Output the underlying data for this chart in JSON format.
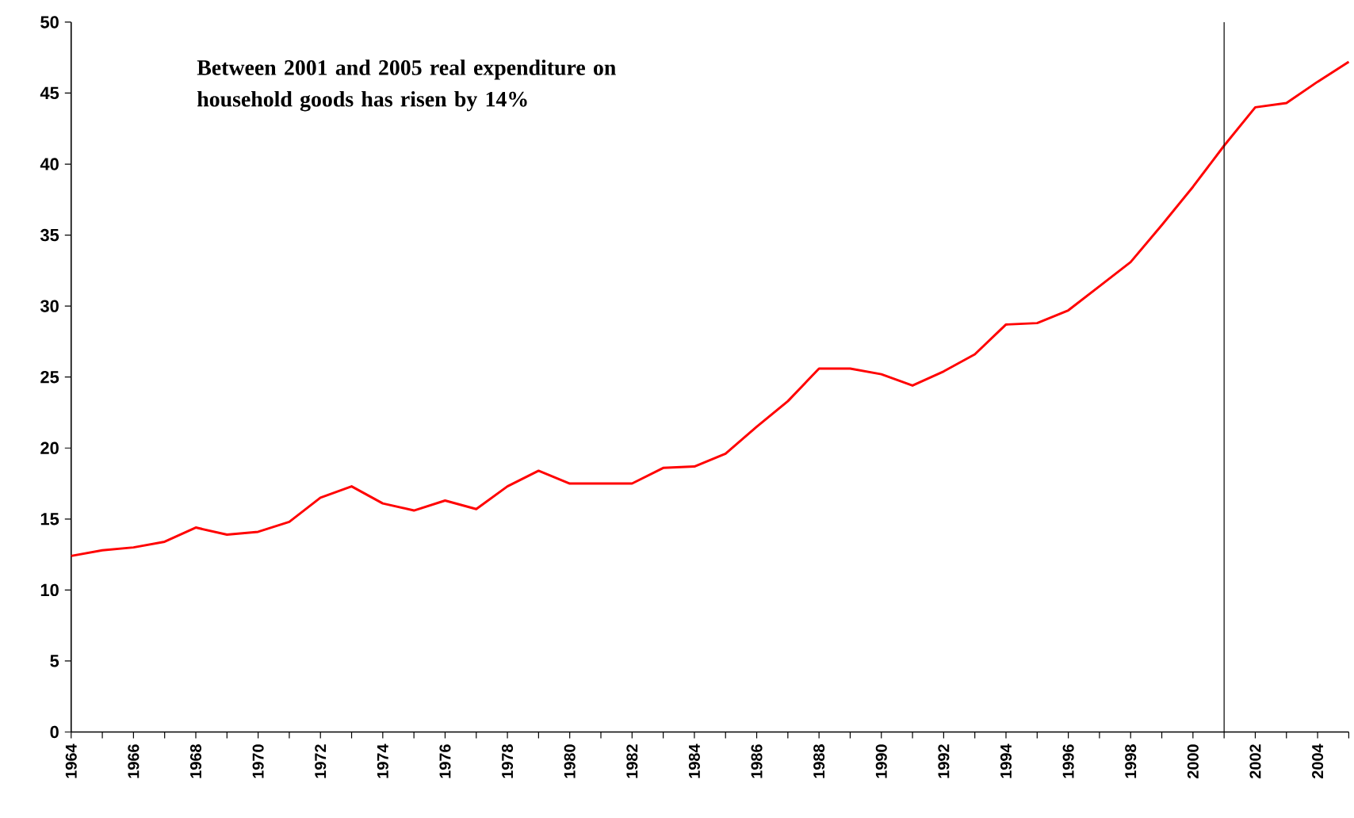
{
  "chart_data": {
    "type": "line",
    "annotations": [
      "**Between 2001 and 2005 real expenditure on household goods has risen by 14%**"
    ],
    "x": [
      1964,
      1965,
      1966,
      1967,
      1968,
      1969,
      1970,
      1971,
      1972,
      1973,
      1974,
      1975,
      1976,
      1977,
      1978,
      1979,
      1980,
      1981,
      1982,
      1983,
      1984,
      1985,
      1986,
      1987,
      1988,
      1989,
      1990,
      1991,
      1992,
      1993,
      1994,
      1995,
      1996,
      1997,
      1998,
      1999,
      2000,
      2001,
      2002,
      2003,
      2004,
      2005
    ],
    "values": [
      12.4,
      12.8,
      13.0,
      13.4,
      14.4,
      13.9,
      14.1,
      14.8,
      16.5,
      17.3,
      16.1,
      15.6,
      16.3,
      15.7,
      17.3,
      18.4,
      17.5,
      17.5,
      17.5,
      18.6,
      18.7,
      19.6,
      21.5,
      23.3,
      25.6,
      25.6,
      25.2,
      24.4,
      25.4,
      26.6,
      28.7,
      28.8,
      29.7,
      31.4,
      33.1,
      35.7,
      38.4,
      41.3,
      44.0,
      44.3,
      45.8,
      47.2
    ],
    "color": "#ff0000",
    "line_style": "solid",
    "xlim": [
      1964,
      2005
    ],
    "ylim": [
      0,
      50
    ],
    "xticks": [
      1964,
      {
        "value": 1965,
        "label": null
      },
      1966,
      {
        "value": 1967,
        "label": null
      },
      1968,
      {
        "value": 1969,
        "label": null
      },
      1970,
      {
        "value": 1971,
        "label": null
      },
      1972,
      {
        "value": 1973,
        "label": null
      },
      1974,
      {
        "value": 1975,
        "label": null
      },
      1976,
      {
        "value": 1977,
        "label": null
      },
      1978,
      {
        "value": 1979,
        "label": null
      },
      1980,
      {
        "value": 1981,
        "label": null
      },
      1982,
      {
        "value": 1983,
        "label": null
      },
      1984,
      {
        "value": 1985,
        "label": null
      },
      1986,
      {
        "value": 1987,
        "label": null
      },
      1988,
      {
        "value": 1989,
        "label": null
      },
      1990,
      {
        "value": 1991,
        "label": null
      },
      1992,
      {
        "value": 1993,
        "label": null
      },
      1994,
      {
        "value": 1995,
        "label": null
      },
      1996,
      {
        "value": 1997,
        "label": null
      },
      1998,
      {
        "value": 1999,
        "label": null
      },
      2000,
      {
        "value": 2001,
        "label": null
      },
      2002,
      {
        "value": 2003,
        "label": null
      },
      2004,
      {
        "value": 2005,
        "label": null
      }
    ],
    "yticks": [
      0,
      5,
      10,
      15,
      20,
      25,
      30,
      35,
      40,
      45,
      50
    ],
    "ref_lines": [
      {
        "axis": "x",
        "value": 2001,
        "color": "#000000"
      }
    ]
  }
}
